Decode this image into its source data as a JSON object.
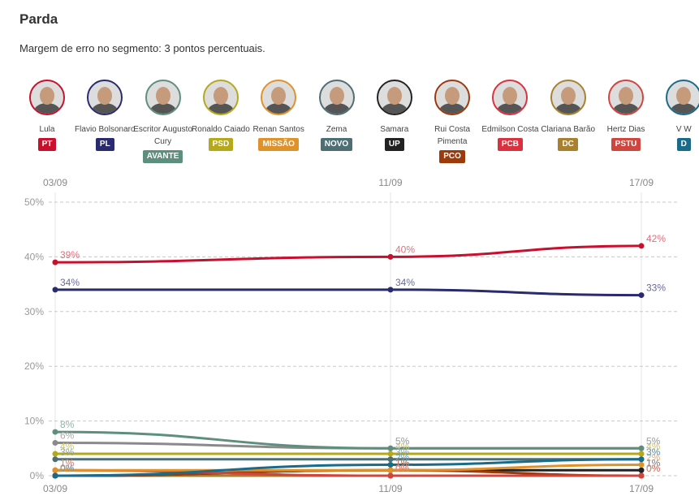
{
  "header": {
    "title": "Parda",
    "subtitle": "Margem de erro no segmento: 3 pontos percentuais."
  },
  "candidates": [
    {
      "name": "Lula",
      "party": "PT",
      "color": "#c8102e"
    },
    {
      "name": "Flavio Bolsonaro",
      "party": "PL",
      "color": "#2a2a6e"
    },
    {
      "name": "Escritor Augusto Cury",
      "party": "AVANTE",
      "color": "#5e8f7e"
    },
    {
      "name": "Ronaldo Caiado",
      "party": "PSD",
      "color": "#b5a81b"
    },
    {
      "name": "Renan Santos",
      "party": "MISSÃO",
      "color": "#e0922a"
    },
    {
      "name": "Zema",
      "party": "NOVO",
      "color": "#4d6e73"
    },
    {
      "name": "Samara",
      "party": "UP",
      "color": "#222222"
    },
    {
      "name": "Rui Costa Pimenta",
      "party": "PCO",
      "color": "#9c3a0c"
    },
    {
      "name": "Edmilson Costa",
      "party": "PCB",
      "color": "#d9313f"
    },
    {
      "name": "Clariana Barão",
      "party": "DC",
      "color": "#a8802e"
    },
    {
      "name": "Hertz Dias",
      "party": "PSTU",
      "color": "#d0453d"
    },
    {
      "name": "V W",
      "party": "D",
      "color": "#1a6b8a"
    }
  ],
  "chart_data": {
    "type": "line",
    "x": [
      "03/09",
      "11/09",
      "17/09"
    ],
    "ylim": [
      0,
      50
    ],
    "yticks": [
      "0%",
      "10%",
      "20%",
      "30%",
      "40%",
      "50%"
    ],
    "grid": true,
    "series": [
      {
        "party": "PT",
        "values": [
          39,
          40,
          42
        ],
        "labels": [
          "39%",
          "40%",
          "42%"
        ],
        "color": "#c8102e",
        "label_color": "#e0707f"
      },
      {
        "party": "PL",
        "values": [
          34,
          34,
          33
        ],
        "labels": [
          "34%",
          "34%",
          "33%"
        ],
        "color": "#2a2a6e",
        "label_color": "#6a6a9e"
      },
      {
        "party": "AVANTE",
        "values": [
          8,
          5,
          5
        ],
        "labels": [
          "8%",
          "5%",
          "5%"
        ],
        "color": "#5e8f7e",
        "label_color": "#8fb5a8"
      },
      {
        "party": "PSD",
        "values": [
          4,
          4,
          4
        ],
        "labels": [
          "4%",
          "4%",
          "4%"
        ],
        "color": "#b5a81b",
        "label_color": "#cfc56a"
      },
      {
        "party": "MISSÃO",
        "values": [
          1,
          1,
          2
        ],
        "labels": [
          "1%",
          "1%",
          "2%"
        ],
        "color": "#e0922a",
        "label_color": "#e8b070"
      },
      {
        "party": "NOVO",
        "values": [
          3,
          3,
          3
        ],
        "labels": [
          "3%",
          "3%",
          "3%"
        ],
        "color": "#4d6e73",
        "label_color": "#8aa3a7"
      },
      {
        "party": "UP",
        "values": [
          0,
          1,
          1
        ],
        "labels": [
          "0%",
          "1%",
          "1%"
        ],
        "color": "#222222",
        "label_color": "#777777"
      },
      {
        "party": "PCO",
        "values": [
          0,
          1,
          0
        ],
        "labels": [
          "0%",
          "1%",
          "0%"
        ],
        "color": "#9c3a0c",
        "label_color": "#c27a5a"
      },
      {
        "party": "PCB",
        "values": [
          0,
          0,
          0
        ],
        "labels": [
          "0%",
          "0%",
          "0%"
        ],
        "color": "#d9313f",
        "label_color": "#e57a84"
      },
      {
        "party": "DC",
        "values": [
          0,
          0,
          0
        ],
        "labels": [
          "0%",
          "0%",
          "0%"
        ],
        "color": "#a8802e",
        "label_color": "#c9a870"
      },
      {
        "party": "PSTU",
        "values": [
          1,
          0,
          0
        ],
        "labels": [
          "1%",
          "0%",
          "0%"
        ],
        "color": "#d0453d",
        "label_color": "#e08078"
      },
      {
        "party": "D",
        "values": [
          0,
          2,
          3
        ],
        "labels": [
          "0%",
          "2%",
          "3%"
        ],
        "color": "#1a6b8a",
        "label_color": "#6a9fb5"
      },
      {
        "party": "GRAY",
        "values": [
          6,
          5,
          5
        ],
        "labels": [
          "6%",
          "5%",
          "5%"
        ],
        "color": "#8a8a8a",
        "label_color": "#aaaaaa"
      }
    ]
  }
}
